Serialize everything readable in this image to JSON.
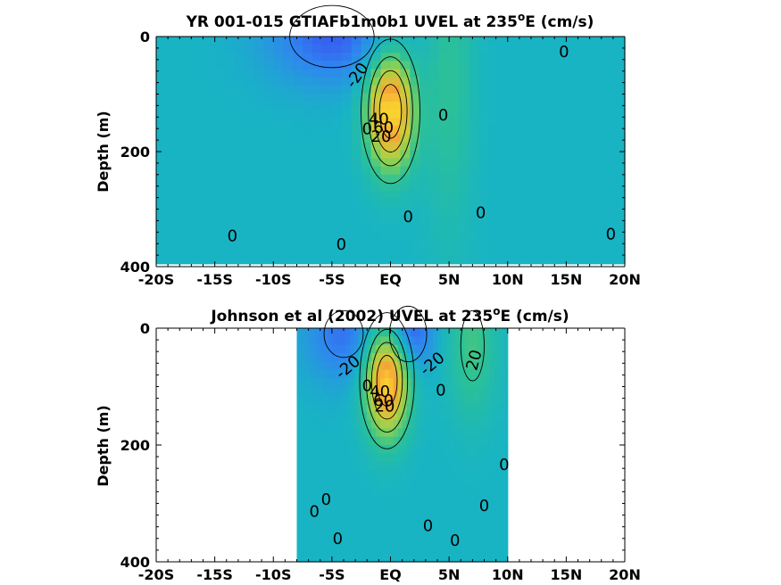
{
  "figure": {
    "colors": {
      "background": "#ffffff",
      "colormap": [
        "#3c3cf0",
        "#2f86f0",
        "#18b4c4",
        "#2cc196",
        "#7fd05a",
        "#cfcb3a",
        "#f7a238",
        "#f9e42b"
      ]
    }
  },
  "chart_data": [
    {
      "type": "heatmap",
      "title_main": "YR 001-015 GTIAFb1m0b1 UVEL at 235",
      "title_sup": "o",
      "title_tail": "E (cm/s)",
      "xlabel": "",
      "ylabel": "Depth (m)",
      "xlim": [
        -20,
        20
      ],
      "ylim": [
        400,
        0
      ],
      "y_reversed": true,
      "x_ticks": [
        -20,
        -15,
        -10,
        -5,
        0,
        5,
        10,
        15,
        20
      ],
      "x_tick_labels": [
        "-20S",
        "-15S",
        "-10S",
        "-5S",
        "EQ",
        "5N",
        "10N",
        "15N",
        "20N"
      ],
      "y_ticks": [
        0,
        200,
        400
      ],
      "y_tick_labels": [
        "0",
        "200",
        "400"
      ],
      "data_extent": {
        "lat": [
          -20,
          20
        ],
        "depth": [
          0,
          395
        ]
      },
      "contour_interval": 20,
      "features": [
        {
          "name": "Equatorial Undercurrent",
          "lat": 0,
          "depth": 130,
          "max_value": 100,
          "lat_width": 1.4,
          "depth_width": 70
        },
        {
          "name": "westward surface flow",
          "lat": -5,
          "depth": 0,
          "max_value": -30,
          "lat_width": 4,
          "depth_width": 60
        },
        {
          "name": "NECC",
          "lat": 5,
          "depth": 60,
          "max_value": 20,
          "lat_width": 1.5,
          "depth_width": 200
        }
      ],
      "contour_labels": [
        {
          "text": "-20",
          "lat": -2.8,
          "depth": 68,
          "angle": -55
        },
        {
          "text": "0",
          "lat": 14.8,
          "depth": 28,
          "angle": 0
        },
        {
          "text": "0",
          "lat": 4.5,
          "depth": 138,
          "angle": 0
        },
        {
          "text": "40",
          "lat": -1.0,
          "depth": 145,
          "angle": 0
        },
        {
          "text": "0",
          "lat": -2.0,
          "depth": 162,
          "angle": 0
        },
        {
          "text": "60",
          "lat": -0.6,
          "depth": 160,
          "angle": 0
        },
        {
          "text": "20",
          "lat": -0.8,
          "depth": 175,
          "angle": 0
        },
        {
          "text": "0",
          "lat": 1.5,
          "depth": 315,
          "angle": 0
        },
        {
          "text": "0",
          "lat": 7.7,
          "depth": 308,
          "angle": 0
        },
        {
          "text": "0",
          "lat": -13.5,
          "depth": 348,
          "angle": 0
        },
        {
          "text": "0",
          "lat": -4.2,
          "depth": 363,
          "angle": 0
        },
        {
          "text": "0",
          "lat": 18.8,
          "depth": 345,
          "angle": 0
        }
      ]
    },
    {
      "type": "heatmap",
      "title_main": "Johnson et al (2002) UVEL at 235",
      "title_sup": "o",
      "title_tail": "E (cm/s)",
      "xlabel": "",
      "ylabel": "Depth (m)",
      "xlim": [
        -20,
        20
      ],
      "ylim": [
        400,
        0
      ],
      "y_reversed": true,
      "x_ticks": [
        -20,
        -15,
        -10,
        -5,
        0,
        5,
        10,
        15,
        20
      ],
      "x_tick_labels": [
        "-20S",
        "-15S",
        "-10S",
        "-5S",
        "EQ",
        "5N",
        "10N",
        "15N",
        "20N"
      ],
      "y_ticks": [
        0,
        200,
        400
      ],
      "y_tick_labels": [
        "0",
        "200",
        "400"
      ],
      "data_extent": {
        "lat": [
          -8,
          10
        ],
        "depth": [
          0,
          400
        ]
      },
      "contour_interval": 20,
      "features": [
        {
          "name": "Equatorial Undercurrent",
          "lat": -0.3,
          "depth": 90,
          "max_value": 100,
          "lat_width": 1.3,
          "depth_width": 65
        },
        {
          "name": "SEC north branch",
          "lat": 1.5,
          "depth": 10,
          "max_value": -35,
          "lat_width": 1.5,
          "depth_width": 45
        },
        {
          "name": "SEC south branch",
          "lat": -4,
          "depth": 10,
          "max_value": -25,
          "lat_width": 2.5,
          "depth_width": 60
        },
        {
          "name": "NECC",
          "lat": 7,
          "depth": 30,
          "max_value": 25,
          "lat_width": 1.5,
          "depth_width": 90
        }
      ],
      "contour_labels": [
        {
          "text": "-20",
          "lat": -3.6,
          "depth": 68,
          "angle": -40
        },
        {
          "text": "-20",
          "lat": 3.6,
          "depth": 62,
          "angle": -40
        },
        {
          "text": "20",
          "lat": 7.2,
          "depth": 55,
          "angle": -75
        },
        {
          "text": "0",
          "lat": 4.3,
          "depth": 108,
          "angle": 0
        },
        {
          "text": "0",
          "lat": -2.0,
          "depth": 100,
          "angle": 0
        },
        {
          "text": "40",
          "lat": -0.9,
          "depth": 110,
          "angle": 0
        },
        {
          "text": "60",
          "lat": -0.6,
          "depth": 125,
          "angle": 0
        },
        {
          "text": "20",
          "lat": -0.5,
          "depth": 135,
          "angle": 0
        },
        {
          "text": "0",
          "lat": 9.7,
          "depth": 235,
          "angle": 0
        },
        {
          "text": "0",
          "lat": -6.5,
          "depth": 315,
          "angle": 0
        },
        {
          "text": "0",
          "lat": -5.5,
          "depth": 295,
          "angle": 0
        },
        {
          "text": "0",
          "lat": 8.0,
          "depth": 305,
          "angle": 0
        },
        {
          "text": "0",
          "lat": 3.2,
          "depth": 340,
          "angle": 0
        },
        {
          "text": "0",
          "lat": -4.5,
          "depth": 362,
          "angle": 0
        },
        {
          "text": "0",
          "lat": 5.5,
          "depth": 365,
          "angle": 0
        }
      ]
    }
  ]
}
